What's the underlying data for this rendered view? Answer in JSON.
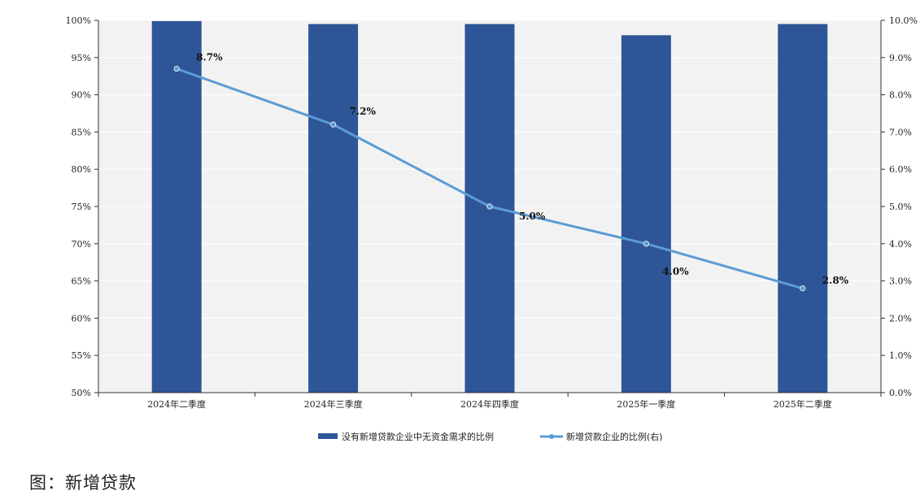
{
  "caption": "图：新增贷款",
  "chart_data": {
    "type": "bar",
    "categories": [
      "2024年二季度",
      "2024年三季度",
      "2024年四季度",
      "2025年一季度",
      "2025年二季度"
    ],
    "series": [
      {
        "name": "没有新增贷款企业中无资金需求的比例",
        "type": "bar",
        "axis": "left",
        "color": "#2E5597",
        "values": [
          99.9,
          99.5,
          99.5,
          98.0,
          99.5
        ]
      },
      {
        "name": "新增贷款企业的比例(右)",
        "type": "line",
        "axis": "right",
        "color": "#5B9BD5",
        "values": [
          8.7,
          7.2,
          5.0,
          4.0,
          2.8
        ],
        "labels": [
          "8.7%",
          "7.2%",
          "5.0%",
          "4.0%",
          "2.8%"
        ]
      }
    ],
    "y_left": {
      "ylim": [
        50,
        100
      ],
      "ticks": [
        "50%",
        "55%",
        "60%",
        "65%",
        "70%",
        "75%",
        "80%",
        "85%",
        "90%",
        "95%",
        "100%"
      ]
    },
    "y_right": {
      "ylim": [
        0,
        10
      ],
      "ticks": [
        "0.0%",
        "1.0%",
        "2.0%",
        "3.0%",
        "4.0%",
        "5.0%",
        "6.0%",
        "7.0%",
        "8.0%",
        "9.0%",
        "10.0%"
      ]
    },
    "legend_position": "bottom",
    "grid": true,
    "plot_background": "#F2F2F2"
  }
}
